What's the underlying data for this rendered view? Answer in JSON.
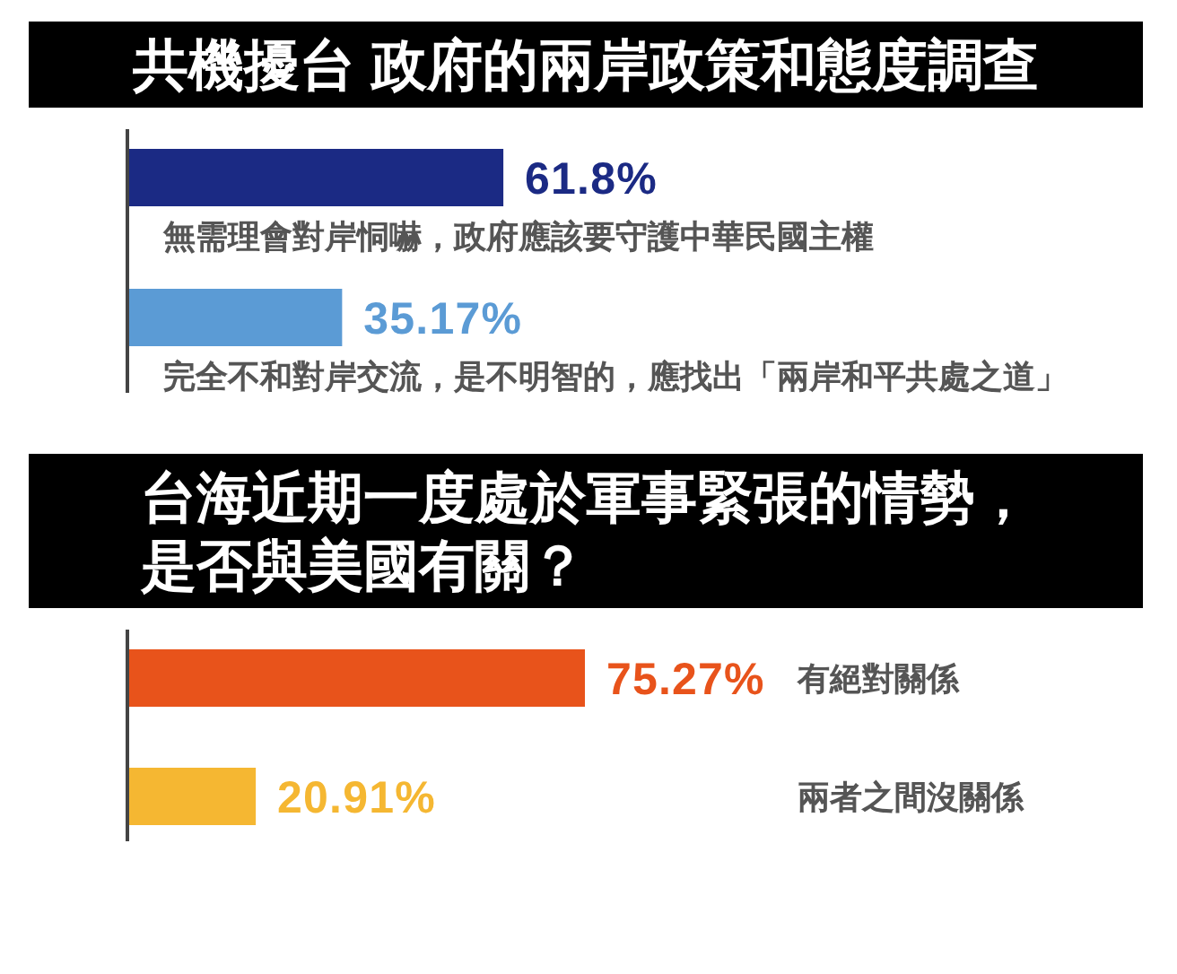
{
  "chart_data": [
    {
      "type": "bar",
      "orientation": "horizontal",
      "title": "共機擾台 政府的兩岸政策和態度調查",
      "categories": [
        "無需理會對岸恫嚇，政府應該要守護中華民國主權",
        "完全不和對岸交流，是不明智的，應找出「兩岸和平共處之道」"
      ],
      "values": [
        61.8,
        35.17
      ],
      "value_labels": [
        "61.8%",
        "35.17%"
      ],
      "colors": [
        "#1b2a84",
        "#5b9bd5"
      ],
      "tick_labels": "y"
    },
    {
      "type": "bar",
      "orientation": "horizontal",
      "title": "台海近期一度處於軍事緊張的情勢，是否與美國有關？",
      "categories": [
        "有絕對關係",
        "兩者之間沒關係"
      ],
      "values": [
        75.27,
        20.91
      ],
      "value_labels": [
        "75.27%",
        "20.91%"
      ],
      "colors": [
        "#e8531b",
        "#f5b732"
      ],
      "tick_labels": "y"
    }
  ]
}
